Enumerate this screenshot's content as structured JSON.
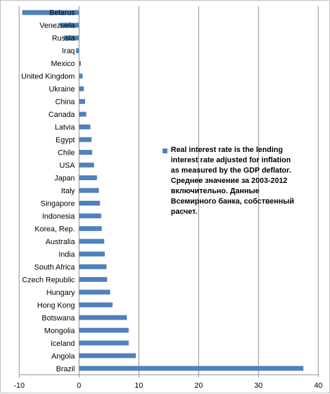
{
  "chart_data": {
    "type": "bar",
    "orientation": "horizontal",
    "categories": [
      "Belarus",
      "Venezuela",
      "Russia",
      "Iraq",
      "Mexico",
      "United Kingdom",
      "Ukraine",
      "China",
      "Canada",
      "Latvia",
      "Egypt",
      "Chile",
      "USA",
      "Japan",
      "Italy",
      "Singapore",
      "Indonesia",
      "Korea, Rep.",
      "Australia",
      "India",
      "South Africa",
      "Czech Republic",
      "Hungary",
      "Hong Kong",
      "Botswana",
      "Mongolia",
      "Iceland",
      "Angola",
      "Brazil"
    ],
    "series": [
      {
        "name": "Real interest rate is the lending interest rate adjusted for inflation as measured by the GDP deflator.\nСреднее значение  за 2003-2012 включительно.  Данные Всемирного банка, собственный  расчет.",
        "color": "#4f81bd",
        "values": [
          -9.5,
          -3.2,
          -2.5,
          -0.5,
          0.3,
          0.6,
          0.8,
          1.0,
          1.2,
          1.9,
          2.1,
          2.2,
          2.5,
          3.0,
          3.3,
          3.5,
          3.7,
          3.8,
          4.2,
          4.3,
          4.6,
          4.7,
          5.2,
          5.6,
          8.0,
          8.3,
          8.3,
          9.5,
          37.5
        ]
      }
    ],
    "xlim": [
      -10,
      40
    ],
    "xticks": [
      -10,
      0,
      10,
      20,
      30,
      40
    ],
    "gridlines": "vertical",
    "legend_position": "right-middle",
    "title": "",
    "xlabel": "",
    "ylabel": ""
  }
}
